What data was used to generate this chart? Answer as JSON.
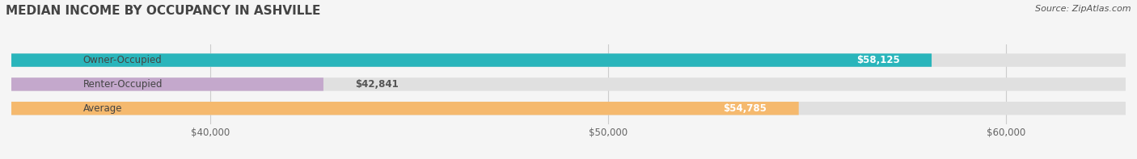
{
  "title": "MEDIAN INCOME BY OCCUPANCY IN ASHVILLE",
  "source": "Source: ZipAtlas.com",
  "categories": [
    "Owner-Occupied",
    "Renter-Occupied",
    "Average"
  ],
  "values": [
    58125,
    42841,
    54785
  ],
  "bar_colors": [
    "#2ab5bb",
    "#c4a8cc",
    "#f5b96e"
  ],
  "bar_bg_color": "#e0e0e0",
  "value_labels": [
    "$58,125",
    "$42,841",
    "$54,785"
  ],
  "x_min": 35000,
  "x_max": 63000,
  "x_ticks": [
    40000,
    50000,
    60000
  ],
  "x_tick_labels": [
    "$40,000",
    "$50,000",
    "$60,000"
  ],
  "title_fontsize": 11,
  "source_fontsize": 8,
  "label_fontsize": 8.5,
  "value_fontsize": 8.5,
  "bar_height": 0.55,
  "background_color": "#f5f5f5",
  "title_color": "#444444",
  "source_color": "#555555",
  "cat_label_color": "#444444",
  "value_label_inside_color": "#ffffff",
  "value_label_outside_color": "#555555"
}
